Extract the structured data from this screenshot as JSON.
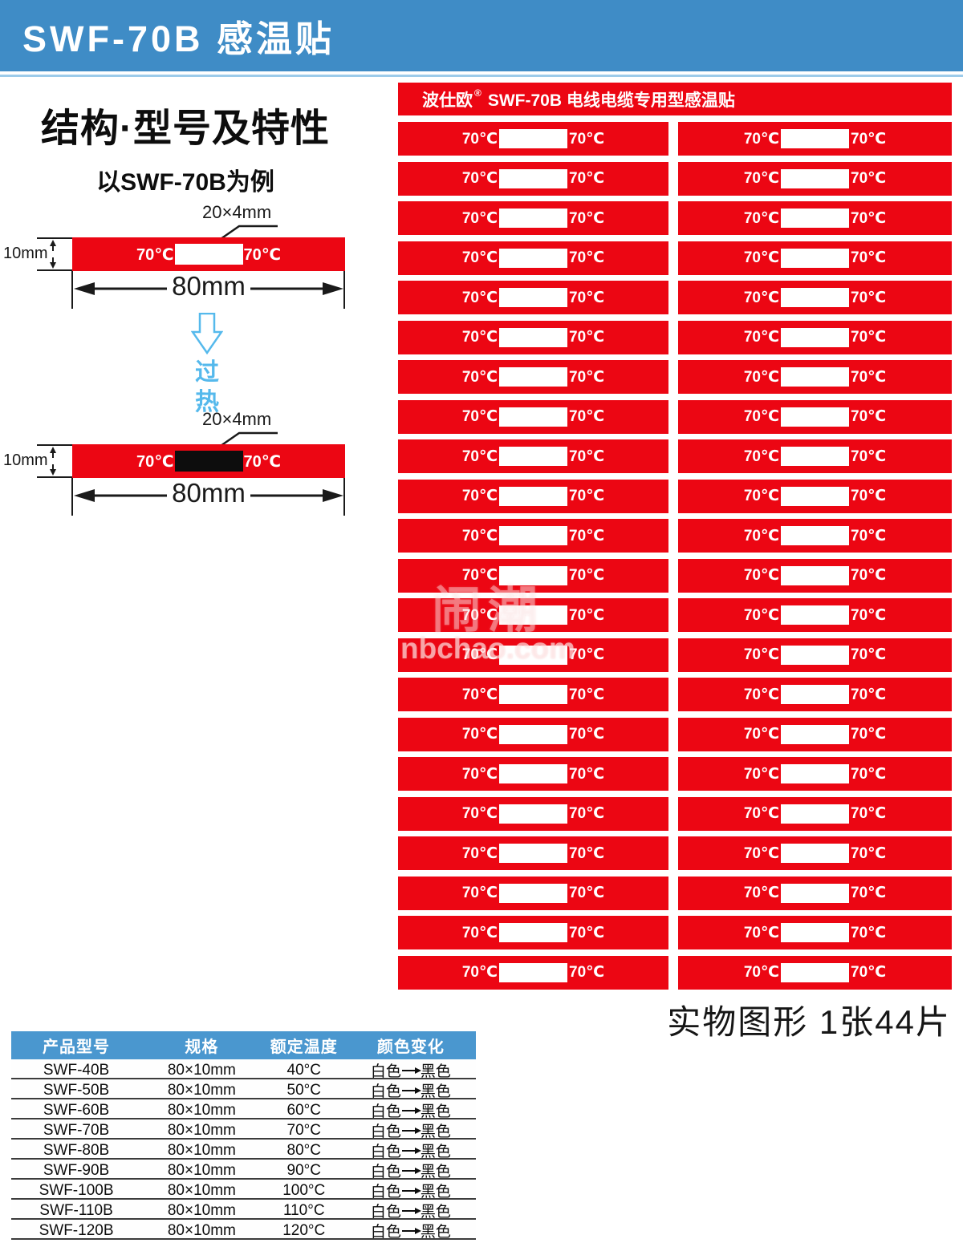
{
  "colors": {
    "header_blue": "#3F8CC6",
    "table_blue": "#4A97CF",
    "red": "#EC0613",
    "light_blue": "#55B9EC",
    "rule_blue": "#9CCBEA"
  },
  "header": {
    "title": "SWF-70B 感温贴"
  },
  "left": {
    "heading": "结构·型号及特性",
    "subheading": "以SWF-70B为例",
    "diagram_top": {
      "window_label": "20×4mm",
      "height_label": "10mm",
      "width_label": "80mm",
      "temp_left": "70℃",
      "temp_right": "70℃",
      "window_state": "white"
    },
    "transition": {
      "line1": "过",
      "line2": "热"
    },
    "diagram_bottom": {
      "window_label": "20×4mm",
      "height_label": "10mm",
      "width_label": "80mm",
      "temp_left": "70℃",
      "temp_right": "70℃",
      "window_state": "black"
    }
  },
  "right_panel": {
    "header": {
      "brand": "波仕欧",
      "reg": "®",
      "rest": "SWF-70B 电线电缆专用型感温贴"
    },
    "sticker": {
      "temp_left": "70℃",
      "temp_right": "70℃"
    },
    "grid": {
      "rows": 22,
      "columns": 2,
      "total_pieces": 44
    },
    "caption": "实物图形 1张44片"
  },
  "watermark": {
    "glyphs": "闹潮",
    "text": "nbchao.com"
  },
  "table": {
    "headers": [
      "产品型号",
      "规格",
      "额定温度",
      "颜色变化"
    ],
    "rows": [
      {
        "model": "SWF-40B",
        "spec": "80×10mm",
        "temp": "40°C",
        "from": "白色",
        "to": "黑色"
      },
      {
        "model": "SWF-50B",
        "spec": "80×10mm",
        "temp": "50°C",
        "from": "白色",
        "to": "黑色"
      },
      {
        "model": "SWF-60B",
        "spec": "80×10mm",
        "temp": "60°C",
        "from": "白色",
        "to": "黑色"
      },
      {
        "model": "SWF-70B",
        "spec": "80×10mm",
        "temp": "70°C",
        "from": "白色",
        "to": "黑色"
      },
      {
        "model": "SWF-80B",
        "spec": "80×10mm",
        "temp": "80°C",
        "from": "白色",
        "to": "黑色"
      },
      {
        "model": "SWF-90B",
        "spec": "80×10mm",
        "temp": "90°C",
        "from": "白色",
        "to": "黑色"
      },
      {
        "model": "SWF-100B",
        "spec": "80×10mm",
        "temp": "100°C",
        "from": "白色",
        "to": "黑色"
      },
      {
        "model": "SWF-110B",
        "spec": "80×10mm",
        "temp": "110°C",
        "from": "白色",
        "to": "黑色"
      },
      {
        "model": "SWF-120B",
        "spec": "80×10mm",
        "temp": "120°C",
        "from": "白色",
        "to": "黑色"
      }
    ]
  }
}
